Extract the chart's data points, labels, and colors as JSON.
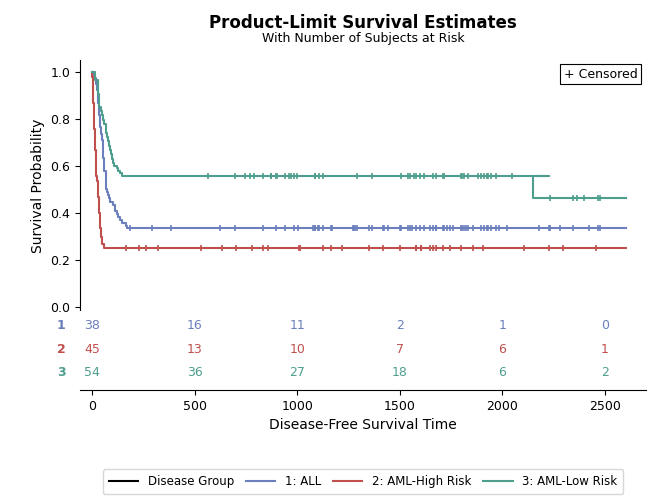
{
  "title": "Product-Limit Survival Estimates",
  "subtitle": "With Number of Subjects at Risk",
  "xlabel": "Disease-Free Survival Time",
  "ylabel": "Survival Probability",
  "xlim": [
    -60,
    2700
  ],
  "ylim": [
    -0.02,
    1.05
  ],
  "xticks": [
    0,
    500,
    1000,
    1500,
    2000,
    2500
  ],
  "yticks": [
    0.0,
    0.2,
    0.4,
    0.6,
    0.8,
    1.0
  ],
  "background_color": "#ffffff",
  "legend_label": "+ Censored",
  "colors": {
    "ALL": "#6b7fbc",
    "AML_High": "#c0504d",
    "AML_Low": "#4e9e8e"
  },
  "risk_table": {
    "times": [
      0,
      500,
      1000,
      1500,
      2000,
      2500
    ],
    "ALL": [
      38,
      16,
      11,
      2,
      1,
      0
    ],
    "AML_High": [
      45,
      13,
      10,
      7,
      6,
      1
    ],
    "AML_Low": [
      54,
      36,
      27,
      18,
      6,
      2
    ]
  },
  "ALL_t": [
    0,
    11,
    18,
    22,
    27,
    29,
    31,
    34,
    37,
    39,
    41,
    46,
    51,
    52,
    54,
    57,
    59,
    65,
    66,
    67,
    74,
    79,
    84,
    86,
    100,
    111,
    120,
    127,
    134,
    144,
    164,
    170,
    196,
    210,
    222,
    263,
    296,
    487,
    620,
    621,
    2600
  ],
  "ALL_s": [
    1.0,
    0.974,
    0.947,
    0.921,
    0.895,
    0.868,
    0.842,
    0.816,
    0.789,
    0.763,
    0.737,
    0.711,
    0.684,
    0.658,
    0.632,
    0.605,
    0.579,
    0.553,
    0.526,
    0.5,
    0.487,
    0.474,
    0.461,
    0.447,
    0.434,
    0.408,
    0.395,
    0.382,
    0.368,
    0.355,
    0.342,
    0.336,
    0.336,
    0.336,
    0.336,
    0.336,
    0.336,
    0.336,
    0.336,
    0.336,
    0.336
  ],
  "ALL_censored_t": [
    185,
    290,
    384,
    624,
    694,
    832,
    895,
    942,
    983,
    1004,
    1074,
    1084,
    1088,
    1100,
    1106,
    1126,
    1163,
    1167,
    1271,
    1278,
    1282,
    1291,
    1350,
    1366,
    1420,
    1422,
    1440,
    1499,
    1506,
    1538,
    1548,
    1557,
    1577,
    1599,
    1618,
    1647,
    1660,
    1677,
    1678,
    1712,
    1714,
    1730,
    1742,
    1758,
    1798,
    1804,
    1813,
    1820,
    1833,
    1855,
    1897,
    1910,
    1926,
    1929,
    1942,
    1969,
    1981,
    2024,
    2177,
    2225,
    2232,
    2280,
    2346,
    2421,
    2466,
    2477
  ],
  "AML_High_t": [
    0,
    1,
    2,
    3,
    4,
    5,
    6,
    7,
    8,
    9,
    10,
    11,
    12,
    13,
    14,
    15,
    16,
    17,
    18,
    19,
    20,
    22,
    26,
    28,
    30,
    31,
    33,
    34,
    36,
    38,
    40,
    43,
    45,
    47,
    50,
    56,
    62,
    63,
    2600
  ],
  "AML_High_s": [
    1.0,
    0.978,
    0.956,
    0.933,
    0.911,
    0.889,
    0.867,
    0.844,
    0.822,
    0.8,
    0.778,
    0.756,
    0.733,
    0.711,
    0.689,
    0.667,
    0.644,
    0.622,
    0.6,
    0.578,
    0.556,
    0.533,
    0.511,
    0.489,
    0.467,
    0.444,
    0.422,
    0.4,
    0.378,
    0.356,
    0.333,
    0.311,
    0.296,
    0.281,
    0.267,
    0.252,
    0.252,
    0.252,
    0.252
  ],
  "AML_High_censored_t": [
    165,
    228,
    260,
    320,
    531,
    632,
    702,
    779,
    835,
    856,
    1006,
    1012,
    1127,
    1163,
    1218,
    1350,
    1420,
    1499,
    1578,
    1579,
    1602,
    1604,
    1647,
    1660,
    1678,
    1710,
    1742,
    1800,
    1855,
    1904,
    2105,
    2225,
    2296,
    2454
  ],
  "AML_Low_t": [
    0,
    13,
    15,
    26,
    28,
    30,
    31,
    33,
    34,
    41,
    47,
    51,
    56,
    65,
    67,
    74,
    79,
    83,
    86,
    90,
    96,
    100,
    108,
    122,
    127,
    134,
    144,
    2148,
    2191,
    2225,
    2232,
    2600
  ],
  "AML_Low_s": [
    1.0,
    0.981,
    0.963,
    0.944,
    0.926,
    0.907,
    0.889,
    0.87,
    0.852,
    0.833,
    0.815,
    0.796,
    0.778,
    0.759,
    0.741,
    0.722,
    0.704,
    0.685,
    0.667,
    0.648,
    0.63,
    0.611,
    0.6,
    0.589,
    0.578,
    0.567,
    0.556,
    0.556,
    0.556,
    0.556,
    0.556,
    0.556
  ],
  "AML_Low_step2_t": [
    2148,
    2600
  ],
  "AML_Low_step2_s": [
    0.463,
    0.463
  ],
  "AML_Low_censored_t": [
    566,
    694,
    744,
    769,
    789,
    832,
    870,
    873,
    895,
    902,
    942,
    960,
    967,
    983,
    998,
    1084,
    1088,
    1106,
    1126,
    1291,
    1366,
    1506,
    1538,
    1548,
    1567,
    1577,
    1599,
    1618,
    1660,
    1677,
    1712,
    1714,
    1798,
    1804,
    1813,
    1833,
    1880,
    1897,
    1910,
    1926,
    1929,
    1942,
    1969,
    2045,
    2232,
    2346,
    2365,
    2396,
    2466,
    2477
  ]
}
